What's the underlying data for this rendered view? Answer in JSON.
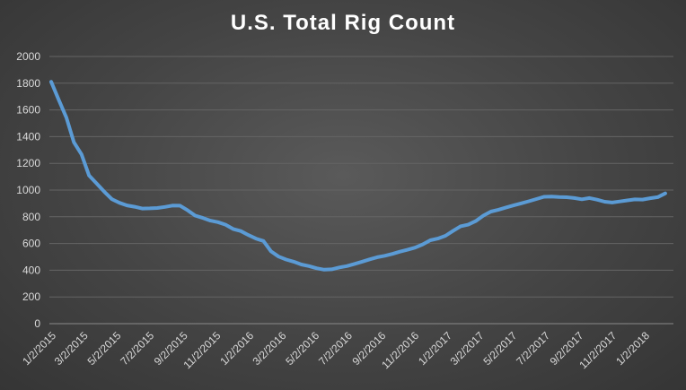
{
  "chart_data": {
    "type": "line",
    "title": "U.S. Total Rig Count",
    "xlabel": "",
    "ylabel": "",
    "ylim": [
      0,
      2000
    ],
    "yticks": [
      0,
      200,
      400,
      600,
      800,
      1000,
      1200,
      1400,
      1600,
      1800,
      2000
    ],
    "grid": true,
    "legend": "none",
    "line_color": "#5b9bd5",
    "x_tick_labels": [
      "1/2/2015",
      "3/2/2015",
      "5/2/2015",
      "7/2/2015",
      "9/2/2015",
      "11/2/2015",
      "1/2/2016",
      "3/2/2016",
      "5/2/2016",
      "7/2/2016",
      "9/2/2016",
      "11/2/2016",
      "1/2/2017",
      "3/2/2017",
      "5/2/2017",
      "7/2/2017",
      "9/2/2017",
      "11/2/2017",
      "1/2/2018"
    ],
    "series": [
      {
        "x": [
          "2015-01-02",
          "2015-01-16",
          "2015-01-30",
          "2015-02-13",
          "2015-02-27",
          "2015-03-13",
          "2015-03-27",
          "2015-04-10",
          "2015-04-24",
          "2015-05-08",
          "2015-05-22",
          "2015-06-05",
          "2015-06-19",
          "2015-07-03",
          "2015-07-17",
          "2015-07-31",
          "2015-08-14",
          "2015-08-28",
          "2015-09-11",
          "2015-09-25",
          "2015-10-09",
          "2015-10-23",
          "2015-11-06",
          "2015-11-20",
          "2015-12-04",
          "2015-12-18",
          "2016-01-01",
          "2016-01-15",
          "2016-01-29",
          "2016-02-12",
          "2016-02-26",
          "2016-03-11",
          "2016-03-25",
          "2016-04-08",
          "2016-04-22",
          "2016-05-06",
          "2016-05-20",
          "2016-06-03",
          "2016-06-17",
          "2016-07-01",
          "2016-07-15",
          "2016-07-29",
          "2016-08-12",
          "2016-08-26",
          "2016-09-09",
          "2016-09-23",
          "2016-10-07",
          "2016-10-21",
          "2016-11-04",
          "2016-11-18",
          "2016-12-02",
          "2016-12-16",
          "2016-12-30",
          "2017-01-13",
          "2017-01-27",
          "2017-02-10",
          "2017-02-24",
          "2017-03-10",
          "2017-03-24",
          "2017-04-07",
          "2017-04-21",
          "2017-05-05",
          "2017-05-19",
          "2017-06-02",
          "2017-06-16",
          "2017-06-30",
          "2017-07-14",
          "2017-07-28",
          "2017-08-11",
          "2017-08-25",
          "2017-09-08",
          "2017-09-22",
          "2017-10-06",
          "2017-10-20",
          "2017-11-03",
          "2017-11-17",
          "2017-12-01",
          "2017-12-15",
          "2017-12-29",
          "2018-01-12",
          "2018-01-26",
          "2018-02-09"
        ],
        "values": [
          1811,
          1676,
          1543,
          1358,
          1267,
          1109,
          1048,
          988,
          932,
          905,
          885,
          875,
          862,
          863,
          866,
          874,
          884,
          883,
          848,
          809,
          791,
          771,
          760,
          741,
          709,
          693,
          664,
          637,
          619,
          541,
          502,
          480,
          464,
          443,
          431,
          415,
          404,
          407,
          421,
          431,
          447,
          464,
          481,
          497,
          508,
          522,
          539,
          553,
          569,
          593,
          624,
          637,
          658,
          694,
          729,
          741,
          768,
          809,
          839,
          853,
          870,
          885,
          901,
          916,
          933,
          950,
          952,
          948,
          946,
          940,
          931,
          940,
          928,
          913,
          907,
          915,
          923,
          930,
          929,
          939,
          947,
          975
        ]
      }
    ]
  }
}
